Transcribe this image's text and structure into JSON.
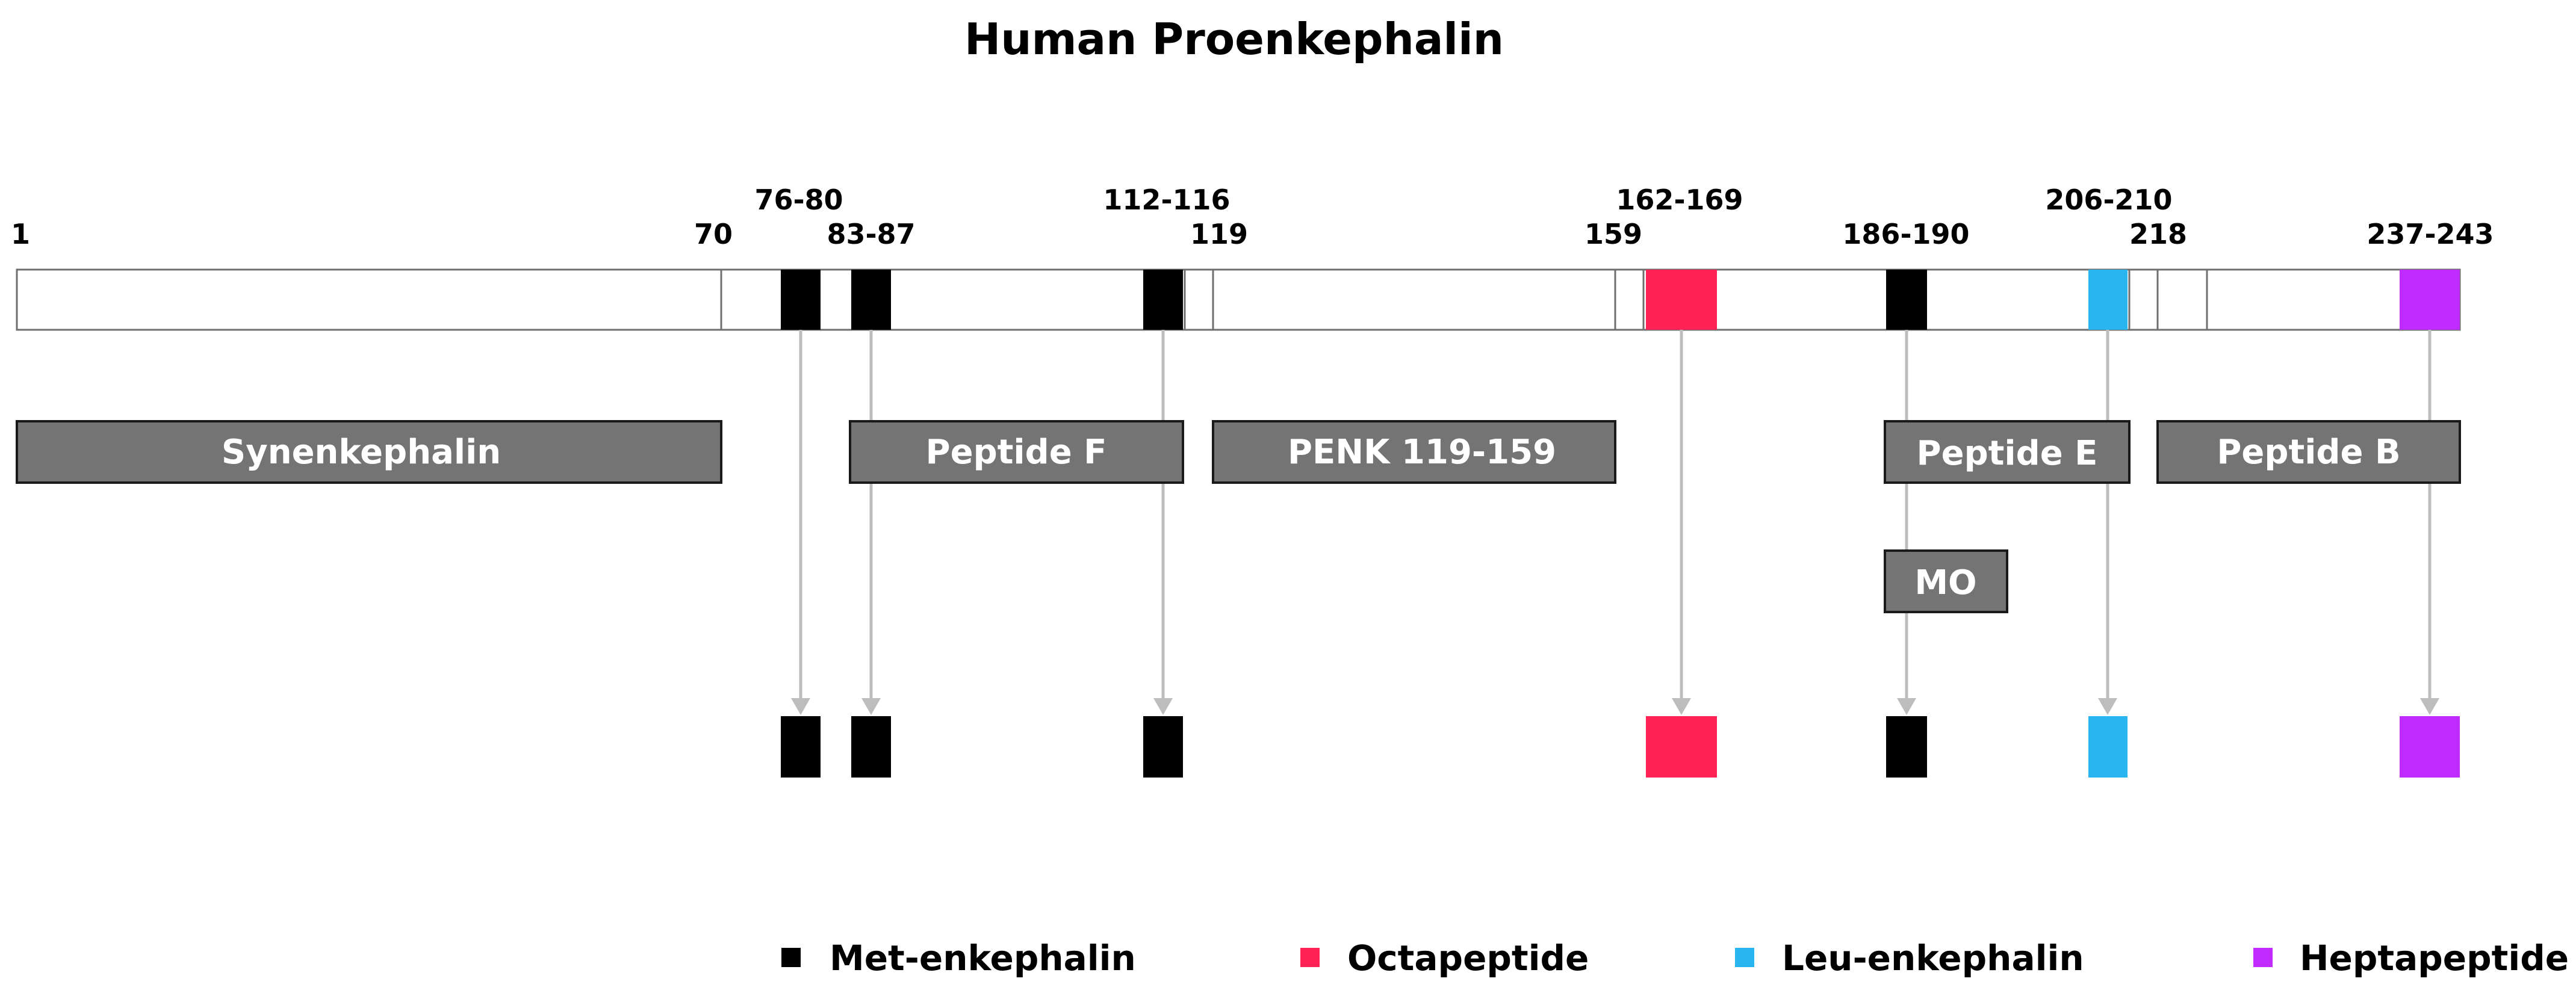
{
  "title": "Human Proenkephalin",
  "colors": {
    "met": "#000000",
    "octa": "#ff2255",
    "leu": "#29b6f0",
    "hepta": "#c02cff"
  },
  "positions": {
    "p1": "1",
    "p70": "70",
    "p76_80": "76-80",
    "p83_87": "83-87",
    "p112_116": "112-116",
    "p119": "119",
    "p159": "159",
    "p162_169": "162-169",
    "p186_190": "186-190",
    "p206_210": "206-210",
    "p218": "218",
    "p237_243": "237-243"
  },
  "peptides": {
    "synenkephalin": "Synenkephalin",
    "peptide_f": "Peptide F",
    "penk": "PENK 119-159",
    "peptide_e": "Peptide E",
    "peptide_b": "Peptide B",
    "mo": "MO"
  },
  "legend": {
    "met": "Met-enkephalin",
    "octa": "Octapeptide",
    "leu": "Leu-enkephalin",
    "hepta": "Heptapeptide"
  }
}
